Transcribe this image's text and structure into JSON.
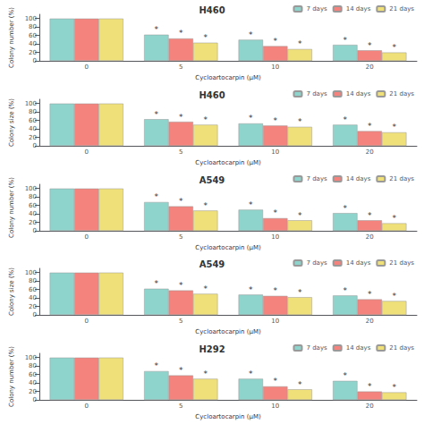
{
  "chart_data": [
    {
      "type": "bar",
      "title": "H292",
      "x_label": "Cycloartocarpin (μM)",
      "y_label": "Colony number (%)",
      "categories": [
        "0",
        "5",
        "10",
        "20"
      ],
      "series": [
        {
          "name": "7 days",
          "color": "#8ed4cc",
          "values": [
            100,
            68,
            50,
            45
          ]
        },
        {
          "name": "14 days",
          "color": "#f4837d",
          "values": [
            100,
            58,
            32,
            20
          ]
        },
        {
          "name": "21 days",
          "color": "#f0e07a",
          "values": [
            100,
            50,
            25,
            18
          ]
        }
      ],
      "ylim": [
        0,
        110
      ],
      "yticks": [
        0,
        20,
        40,
        60,
        80,
        100
      ],
      "grid": false,
      "legend": "upper right",
      "annotations": [
        {
          "text": "*",
          "series": "7 days",
          "category": "5"
        },
        {
          "text": "*",
          "series": "14 days",
          "category": "5"
        },
        {
          "text": "*",
          "series": "21 days",
          "category": "5"
        },
        {
          "text": "*",
          "series": "7 days",
          "category": "10"
        },
        {
          "text": "*",
          "series": "14 days",
          "category": "10"
        },
        {
          "text": "*",
          "series": "21 days",
          "category": "10"
        },
        {
          "text": "*",
          "series": "7 days",
          "category": "20"
        },
        {
          "text": "*",
          "series": "14 days",
          "category": "20"
        },
        {
          "text": "*",
          "series": "21 days",
          "category": "20"
        }
      ]
    },
    {
      "type": "bar",
      "title": "A549",
      "x_label": "Cycloartocarpin (μM)",
      "y_label": "Colony size (%)",
      "categories": [
        "0",
        "5",
        "10",
        "20"
      ],
      "series": [
        {
          "name": "7 days",
          "color": "#8ed4cc",
          "values": [
            100,
            62,
            48,
            46
          ]
        },
        {
          "name": "14 days",
          "color": "#f4837d",
          "values": [
            100,
            58,
            45,
            37
          ]
        },
        {
          "name": "21 days",
          "color": "#f0e07a",
          "values": [
            100,
            50,
            42,
            33
          ]
        }
      ],
      "ylim": [
        0,
        110
      ],
      "yticks": [
        0,
        20,
        40,
        60,
        80,
        100
      ],
      "grid": false,
      "legend": "upper right",
      "annotations": [
        {
          "text": "*",
          "series": "7 days",
          "category": "5"
        },
        {
          "text": "*",
          "series": "14 days",
          "category": "5"
        },
        {
          "text": "*",
          "series": "21 days",
          "category": "5"
        },
        {
          "text": "*",
          "series": "7 days",
          "category": "10"
        },
        {
          "text": "*",
          "series": "14 days",
          "category": "10"
        },
        {
          "text": "*",
          "series": "21 days",
          "category": "10"
        },
        {
          "text": "*",
          "series": "7 days",
          "category": "20"
        },
        {
          "text": "*",
          "series": "14 days",
          "category": "20"
        },
        {
          "text": "*",
          "series": "21 days",
          "category": "20"
        }
      ]
    },
    {
      "type": "bar",
      "title": "A549",
      "x_label": "Cycloartocarpin (μM)",
      "y_label": "Colony number (%)",
      "categories": [
        "0",
        "5",
        "10",
        "20"
      ],
      "series": [
        {
          "name": "7 days",
          "color": "#8ed4cc",
          "values": [
            100,
            68,
            50,
            42
          ]
        },
        {
          "name": "14 days",
          "color": "#f4837d",
          "values": [
            100,
            58,
            30,
            25
          ]
        },
        {
          "name": "21 days",
          "color": "#f0e07a",
          "values": [
            100,
            48,
            25,
            18
          ]
        }
      ],
      "ylim": [
        0,
        110
      ],
      "yticks": [
        0,
        20,
        40,
        60,
        80,
        100
      ],
      "grid": false,
      "legend": "upper right",
      "annotations": [
        {
          "text": "*",
          "series": "7 days",
          "category": "5"
        },
        {
          "text": "*",
          "series": "14 days",
          "category": "5"
        },
        {
          "text": "*",
          "series": "21 days",
          "category": "5"
        },
        {
          "text": "*",
          "series": "7 days",
          "category": "10"
        },
        {
          "text": "*",
          "series": "14 days",
          "category": "10"
        },
        {
          "text": "*",
          "series": "21 days",
          "category": "10"
        },
        {
          "text": "*",
          "series": "7 days",
          "category": "20"
        },
        {
          "text": "*",
          "series": "14 days",
          "category": "20"
        },
        {
          "text": "*",
          "series": "21 days",
          "category": "20"
        }
      ]
    },
    {
      "type": "bar",
      "title": "H460",
      "x_label": "Cycloartocarpin (μM)",
      "y_label": "Colony size (%)",
      "categories": [
        "0",
        "5",
        "10",
        "20"
      ],
      "series": [
        {
          "name": "7 days",
          "color": "#8ed4cc",
          "values": [
            100,
            63,
            53,
            50
          ]
        },
        {
          "name": "14 days",
          "color": "#f4837d",
          "values": [
            100,
            57,
            48,
            35
          ]
        },
        {
          "name": "21 days",
          "color": "#f0e07a",
          "values": [
            100,
            50,
            45,
            32
          ]
        }
      ],
      "ylim": [
        0,
        110
      ],
      "yticks": [
        0,
        20,
        40,
        60,
        80,
        100
      ],
      "grid": false,
      "legend": "upper right",
      "annotations": [
        {
          "text": "*",
          "series": "7 days",
          "category": "5"
        },
        {
          "text": "*",
          "series": "14 days",
          "category": "5"
        },
        {
          "text": "*",
          "series": "21 days",
          "category": "5"
        },
        {
          "text": "*",
          "series": "7 days",
          "category": "10"
        },
        {
          "text": "*",
          "series": "14 days",
          "category": "10"
        },
        {
          "text": "*",
          "series": "21 days",
          "category": "10"
        },
        {
          "text": "*",
          "series": "7 days",
          "category": "20"
        },
        {
          "text": "*",
          "series": "14 days",
          "category": "20"
        },
        {
          "text": "*",
          "series": "21 days",
          "category": "20"
        }
      ]
    },
    {
      "type": "bar",
      "title": "H460",
      "x_label": "Cycloartocarpin (μM)",
      "y_label": "Colony number (%)",
      "categories": [
        "0",
        "5",
        "10",
        "20"
      ],
      "series": [
        {
          "name": "7 days",
          "color": "#8ed4cc",
          "values": [
            100,
            62,
            50,
            38
          ]
        },
        {
          "name": "14 days",
          "color": "#f4837d",
          "values": [
            100,
            53,
            35,
            25
          ]
        },
        {
          "name": "21 days",
          "color": "#f0e07a",
          "values": [
            100,
            43,
            28,
            20
          ]
        }
      ],
      "ylim": [
        0,
        110
      ],
      "yticks": [
        0,
        20,
        40,
        60,
        80,
        100
      ],
      "grid": false,
      "legend": "upper right",
      "annotations": [
        {
          "text": "*",
          "series": "7 days",
          "category": "5"
        },
        {
          "text": "*",
          "series": "14 days",
          "category": "5"
        },
        {
          "text": "*",
          "series": "21 days",
          "category": "5"
        },
        {
          "text": "*",
          "series": "7 days",
          "category": "10"
        },
        {
          "text": "*",
          "series": "14 days",
          "category": "10"
        },
        {
          "text": "*",
          "series": "21 days",
          "category": "10"
        },
        {
          "text": "*",
          "series": "7 days",
          "category": "20"
        },
        {
          "text": "*",
          "series": "14 days",
          "category": "20"
        },
        {
          "text": "*",
          "series": "21 days",
          "category": "20"
        }
      ]
    }
  ]
}
